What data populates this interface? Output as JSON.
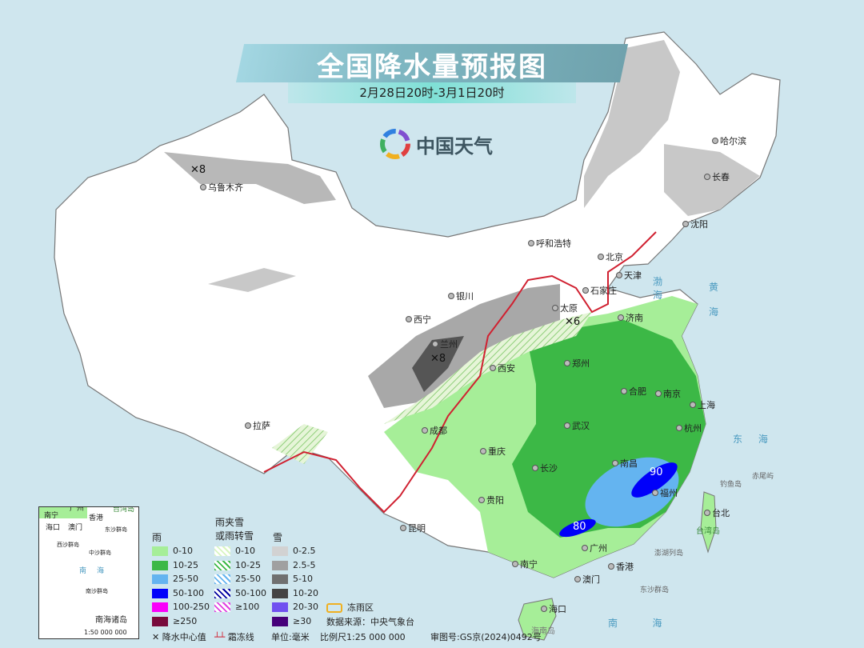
{
  "header": {
    "title": "全国降水量预报图",
    "period": "2月28日20时-3月1日20时",
    "logo_text": "中国天气"
  },
  "cities": [
    "乌鲁木齐",
    "哈尔滨",
    "长春",
    "沈阳",
    "呼和浩特",
    "北京",
    "天津",
    "石家庄",
    "太原",
    "济南",
    "银川",
    "西宁",
    "兰州",
    "西安",
    "郑州",
    "合肥",
    "南京",
    "上海",
    "杭州",
    "武汉",
    "南昌",
    "长沙",
    "福州",
    "台北",
    "成都",
    "重庆",
    "贵阳",
    "昆明",
    "拉萨",
    "南宁",
    "广州",
    "香港",
    "澳门",
    "海口"
  ],
  "seas": {
    "yellow": "黄",
    "yellow2": "海",
    "east": "东",
    "east2": "海",
    "south": "南",
    "south2": "海",
    "bohai": "渤",
    "bohai2": "海",
    "taiwan": "台湾岛",
    "diaoyu": "钓鱼岛",
    "chiwei": "赤尾屿",
    "dongsha": "东沙群岛",
    "penghu": "澎湖列岛",
    "hainan": "海南岛"
  },
  "center_values": [
    "8",
    "8",
    "6",
    "90",
    "80"
  ],
  "legend": {
    "rain_title": "雨",
    "mix_title": "雨夹雪\n或雨转雪",
    "mix_title_1": "雨夹雪",
    "mix_title_2": "或雨转雪",
    "snow_title": "雪",
    "rain": [
      {
        "label": "0-10",
        "color": "#a6ee98"
      },
      {
        "label": "10-25",
        "color": "#3cb846"
      },
      {
        "label": "25-50",
        "color": "#64b4f0"
      },
      {
        "label": "50-100",
        "color": "#0000fa"
      },
      {
        "label": "100-250",
        "color": "#fa00fa"
      },
      {
        "label": "≥250",
        "color": "#780a3c"
      }
    ],
    "mix": [
      {
        "label": "0-10",
        "color": "#d8f5c0"
      },
      {
        "label": "10-25",
        "color": "#3cb846"
      },
      {
        "label": "25-50",
        "color": "#64b4f0"
      },
      {
        "label": "50-100",
        "color": "#0000a0"
      },
      {
        "label": "≥100",
        "color": "#e040e0"
      }
    ],
    "snow": [
      {
        "label": "0-2.5",
        "color": "#d2d2d2"
      },
      {
        "label": "2.5-5",
        "color": "#a0a0a0"
      },
      {
        "label": "5-10",
        "color": "#707070"
      },
      {
        "label": "10-20",
        "color": "#444444"
      },
      {
        "label": "20-30",
        "color": "#7050f0"
      },
      {
        "label": "≥30",
        "color": "#46007a"
      }
    ],
    "freezing_rain": "冻雨区",
    "freezing_color": "#f0b020",
    "source": "数据来源：中央气象台"
  },
  "footer": {
    "center_value": "降水中心值",
    "frost_line": "霜冻线",
    "unit": "单位:毫米",
    "scale": "比例尺1:25 000 000",
    "approval": "审图号:GS京(2024)0492号"
  },
  "inset": {
    "title": "南海诸岛",
    "scale": "1:50 000 000",
    "labels": [
      "南宁",
      "香港",
      "澳门",
      "海口",
      "广州",
      "台湾岛",
      "东沙群岛",
      "西沙群岛",
      "中沙群岛",
      "南",
      "海",
      "南沙群岛"
    ]
  }
}
